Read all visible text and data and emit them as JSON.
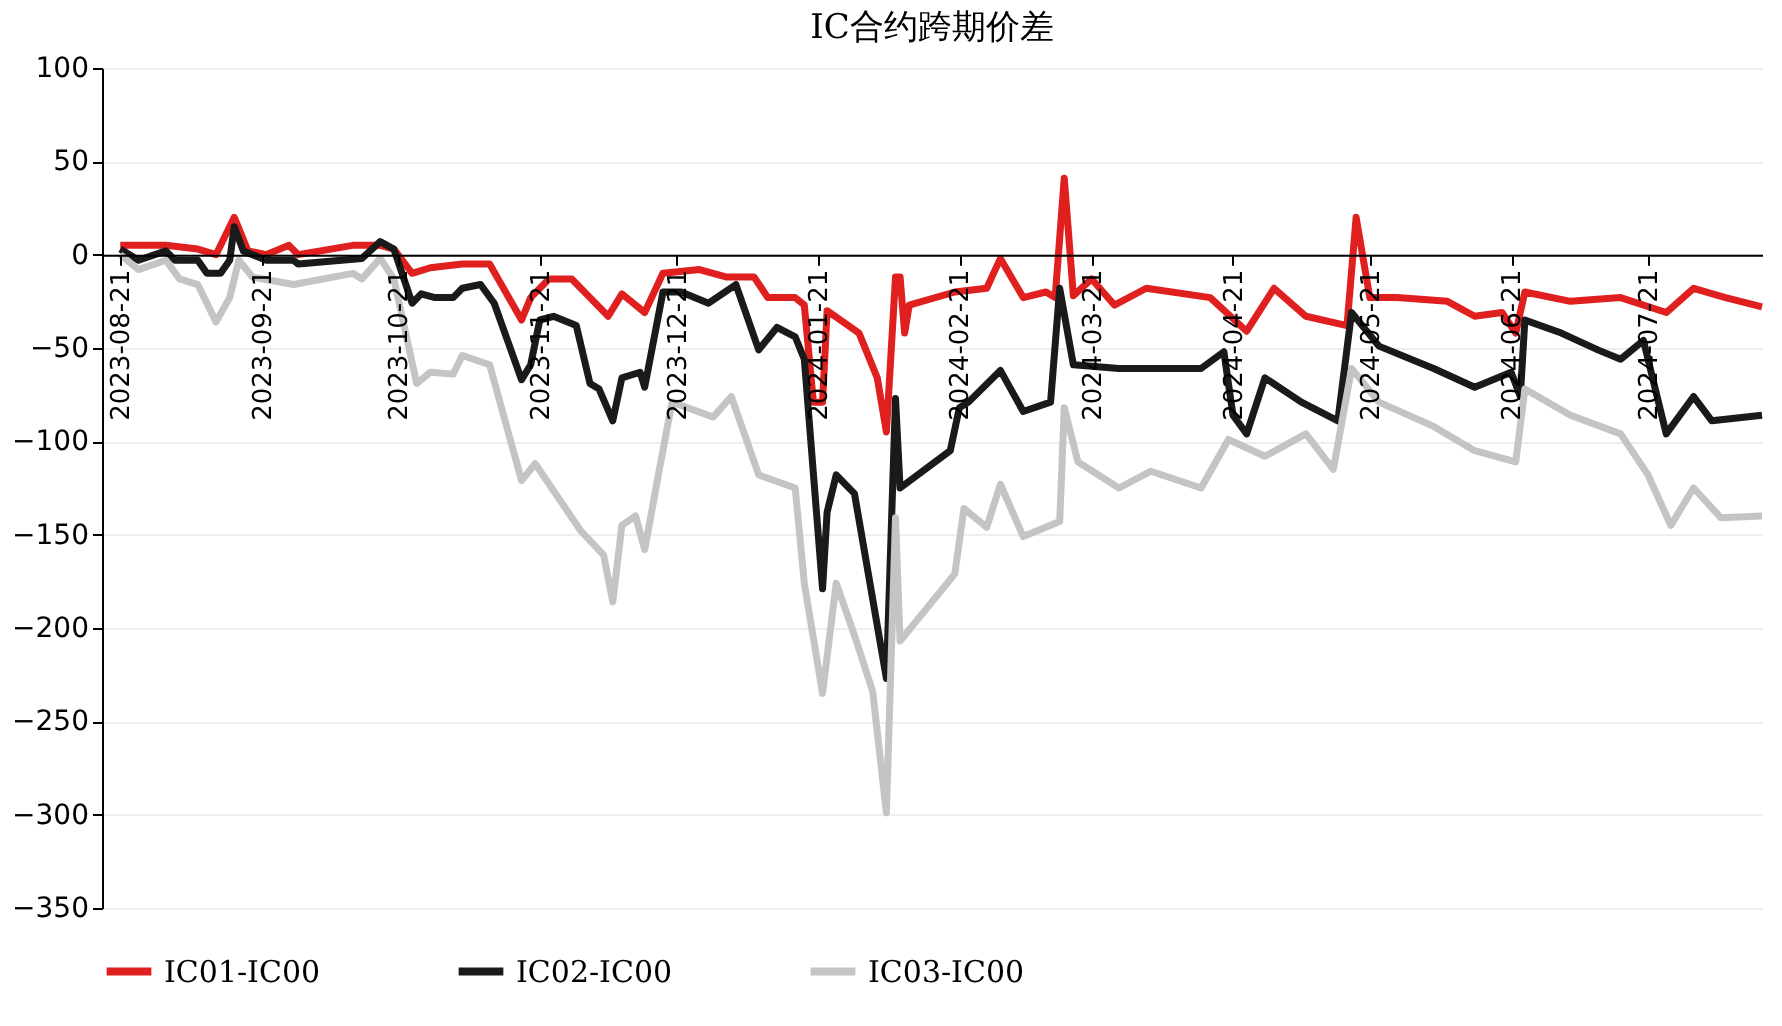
{
  "chart_data": {
    "type": "line",
    "title": "IC合约跨期价差",
    "xlim": [
      "2023-08-17",
      "2024-08-15"
    ],
    "xticks": [
      "2023-08-21",
      "2023-09-21",
      "2023-10-21",
      "2023-11-21",
      "2023-12-21",
      "2024-01-21",
      "2024-02-21",
      "2024-03-21",
      "2024-04-21",
      "2024-05-21",
      "2024-06-21",
      "2024-07-21"
    ],
    "ylim": [
      -350,
      100
    ],
    "yticks": [
      -350,
      -300,
      -250,
      -200,
      -150,
      -100,
      -50,
      0,
      50,
      100
    ],
    "grid": "y",
    "legend": "bottom",
    "line_style": "solid",
    "marker": "none",
    "series": [
      {
        "name": "IC01-IC00",
        "color": "#e0201f",
        "x": [
          "2023-08-21",
          "2023-08-31",
          "2023-09-07",
          "2023-09-11",
          "2023-09-15",
          "2023-09-18",
          "2023-09-22",
          "2023-09-27",
          "2023-09-29",
          "2023-10-11",
          "2023-10-17",
          "2023-10-20",
          "2023-10-24",
          "2023-10-28",
          "2023-11-04",
          "2023-11-10",
          "2023-11-17",
          "2023-11-19",
          "2023-11-23",
          "2023-11-28",
          "2023-12-02",
          "2023-12-06",
          "2023-12-09",
          "2023-12-14",
          "2023-12-18",
          "2023-12-26",
          "2024-01-01",
          "2024-01-07",
          "2024-01-10",
          "2024-01-16",
          "2024-01-18",
          "2024-01-20",
          "2024-01-22",
          "2024-01-23",
          "2024-01-30",
          "2024-02-03",
          "2024-02-05",
          "2024-02-07",
          "2024-02-08",
          "2024-02-09",
          "2024-02-10",
          "2024-02-20",
          "2024-02-27",
          "2024-03-01",
          "2024-03-06",
          "2024-03-11",
          "2024-03-13",
          "2024-03-15",
          "2024-03-17",
          "2024-03-21",
          "2024-03-26",
          "2024-04-02",
          "2024-04-16",
          "2024-04-24",
          "2024-04-30",
          "2024-05-07",
          "2024-05-16",
          "2024-05-18",
          "2024-05-21",
          "2024-05-27",
          "2024-06-07",
          "2024-06-13",
          "2024-06-19",
          "2024-06-22",
          "2024-06-24",
          "2024-07-04",
          "2024-07-15",
          "2024-07-25",
          "2024-07-31",
          "2024-08-07",
          "2024-08-15"
        ],
        "values": [
          5,
          5,
          3,
          0,
          20,
          2,
          0,
          5,
          0,
          5,
          5,
          3,
          -10,
          -7,
          -5,
          -5,
          -35,
          -23,
          -13,
          -13,
          -23,
          -33,
          -21,
          -31,
          -10,
          -8,
          -12,
          -12,
          -23,
          -23,
          -27,
          -79,
          -79,
          -30,
          -42,
          -66,
          -95,
          -12,
          -12,
          -42,
          -27,
          -20,
          -18,
          -2,
          -23,
          -20,
          -23,
          41,
          -22,
          -13,
          -27,
          -18,
          -23,
          -41,
          -18,
          -33,
          -38,
          20,
          -23,
          -23,
          -25,
          -33,
          -31,
          -42,
          -20,
          -25,
          -23,
          -31,
          -18,
          -23,
          -28
        ]
      },
      {
        "name": "IC02-IC00",
        "color": "#1a1a1a",
        "x": [
          "2023-08-21",
          "2023-08-25",
          "2023-08-31",
          "2023-09-02",
          "2023-09-07",
          "2023-09-09",
          "2023-09-12",
          "2023-09-14",
          "2023-09-15",
          "2023-09-17",
          "2023-09-22",
          "2023-09-28",
          "2023-09-29",
          "2023-10-13",
          "2023-10-17",
          "2023-10-20",
          "2023-10-24",
          "2023-10-26",
          "2023-10-29",
          "2023-11-02",
          "2023-11-04",
          "2023-11-08",
          "2023-11-11",
          "2023-11-17",
          "2023-11-19",
          "2023-11-21",
          "2023-11-24",
          "2023-11-29",
          "2023-12-02",
          "2023-12-04",
          "2023-12-07",
          "2023-12-09",
          "2023-12-13",
          "2023-12-14",
          "2023-12-18",
          "2023-12-22",
          "2023-12-28",
          "2024-01-03",
          "2024-01-08",
          "2024-01-12",
          "2024-01-16",
          "2024-01-18",
          "2024-01-22",
          "2024-01-23",
          "2024-01-25",
          "2024-01-29",
          "2024-02-05",
          "2024-02-07",
          "2024-02-08",
          "2024-02-19",
          "2024-02-21",
          "2024-02-23",
          "2024-03-01",
          "2024-03-06",
          "2024-03-12",
          "2024-03-14",
          "2024-03-17",
          "2024-03-27",
          "2024-04-02",
          "2024-04-14",
          "2024-04-19",
          "2024-04-21",
          "2024-04-24",
          "2024-04-28",
          "2024-05-06",
          "2024-05-14",
          "2024-05-17",
          "2024-05-23",
          "2024-06-04",
          "2024-06-13",
          "2024-06-21",
          "2024-06-23",
          "2024-06-24",
          "2024-07-02",
          "2024-07-10",
          "2024-07-15",
          "2024-07-20",
          "2024-07-25",
          "2024-07-31",
          "2024-08-04",
          "2024-08-15"
        ],
        "values": [
          3,
          -3,
          2,
          -3,
          -3,
          -10,
          -10,
          -3,
          15,
          2,
          -3,
          -3,
          -5,
          -2,
          7,
          3,
          -26,
          -21,
          -23,
          -23,
          -18,
          -16,
          -26,
          -67,
          -59,
          -35,
          -33,
          -38,
          -69,
          -72,
          -89,
          -66,
          -63,
          -71,
          -20,
          -20,
          -26,
          -16,
          -51,
          -39,
          -44,
          -56,
          -179,
          -138,
          -118,
          -128,
          -227,
          -77,
          -125,
          -105,
          -82,
          -79,
          -62,
          -84,
          -79,
          -18,
          -59,
          -61,
          -61,
          -61,
          -52,
          -86,
          -96,
          -66,
          -79,
          -89,
          -31,
          -49,
          -61,
          -71,
          -63,
          -76,
          -35,
          -42,
          -51,
          -56,
          -46,
          -96,
          -76,
          -89,
          -86
        ]
      },
      {
        "name": "IC03-IC00",
        "color": "#c4c4c4",
        "x": [
          "2023-08-21",
          "2023-08-25",
          "2023-08-31",
          "2023-09-03",
          "2023-09-07",
          "2023-09-11",
          "2023-09-14",
          "2023-09-16",
          "2023-09-19",
          "2023-09-28",
          "2023-10-11",
          "2023-10-13",
          "2023-10-17",
          "2023-10-20",
          "2023-10-25",
          "2023-10-28",
          "2023-11-02",
          "2023-11-04",
          "2023-11-10",
          "2023-11-17",
          "2023-11-20",
          "2023-11-30",
          "2023-12-05",
          "2023-12-07",
          "2023-12-09",
          "2023-12-12",
          "2023-12-14",
          "2023-12-17",
          "2023-12-20",
          "2023-12-29",
          "2024-01-02",
          "2024-01-08",
          "2024-01-16",
          "2024-01-18",
          "2024-01-22",
          "2024-01-25",
          "2024-01-29",
          "2024-02-02",
          "2024-02-05",
          "2024-02-07",
          "2024-02-08",
          "2024-02-20",
          "2024-02-22",
          "2024-02-27",
          "2024-03-01",
          "2024-03-06",
          "2024-03-14",
          "2024-03-15",
          "2024-03-18",
          "2024-03-27",
          "2024-04-03",
          "2024-04-14",
          "2024-04-20",
          "2024-04-28",
          "2024-05-07",
          "2024-05-13",
          "2024-05-17",
          "2024-05-23",
          "2024-06-04",
          "2024-06-13",
          "2024-06-22",
          "2024-06-24",
          "2024-07-04",
          "2024-07-15",
          "2024-07-21",
          "2024-07-26",
          "2024-07-31",
          "2024-08-06",
          "2024-08-15"
        ],
        "values": [
          0,
          -8,
          -3,
          -13,
          -16,
          -36,
          -23,
          -3,
          -12,
          -16,
          -10,
          -13,
          -2,
          -13,
          -69,
          -63,
          -64,
          -54,
          -59,
          -121,
          -112,
          -148,
          -161,
          -186,
          -145,
          -140,
          -158,
          -118,
          -79,
          -87,
          -76,
          -118,
          -125,
          -176,
          -235,
          -176,
          -204,
          -234,
          -299,
          -141,
          -207,
          -171,
          -136,
          -146,
          -123,
          -151,
          -143,
          -82,
          -111,
          -125,
          -116,
          -125,
          -99,
          -108,
          -96,
          -115,
          -61,
          -79,
          -92,
          -105,
          -111,
          -72,
          -86,
          -96,
          -118,
          -145,
          -125,
          -141,
          -140
        ]
      }
    ]
  }
}
